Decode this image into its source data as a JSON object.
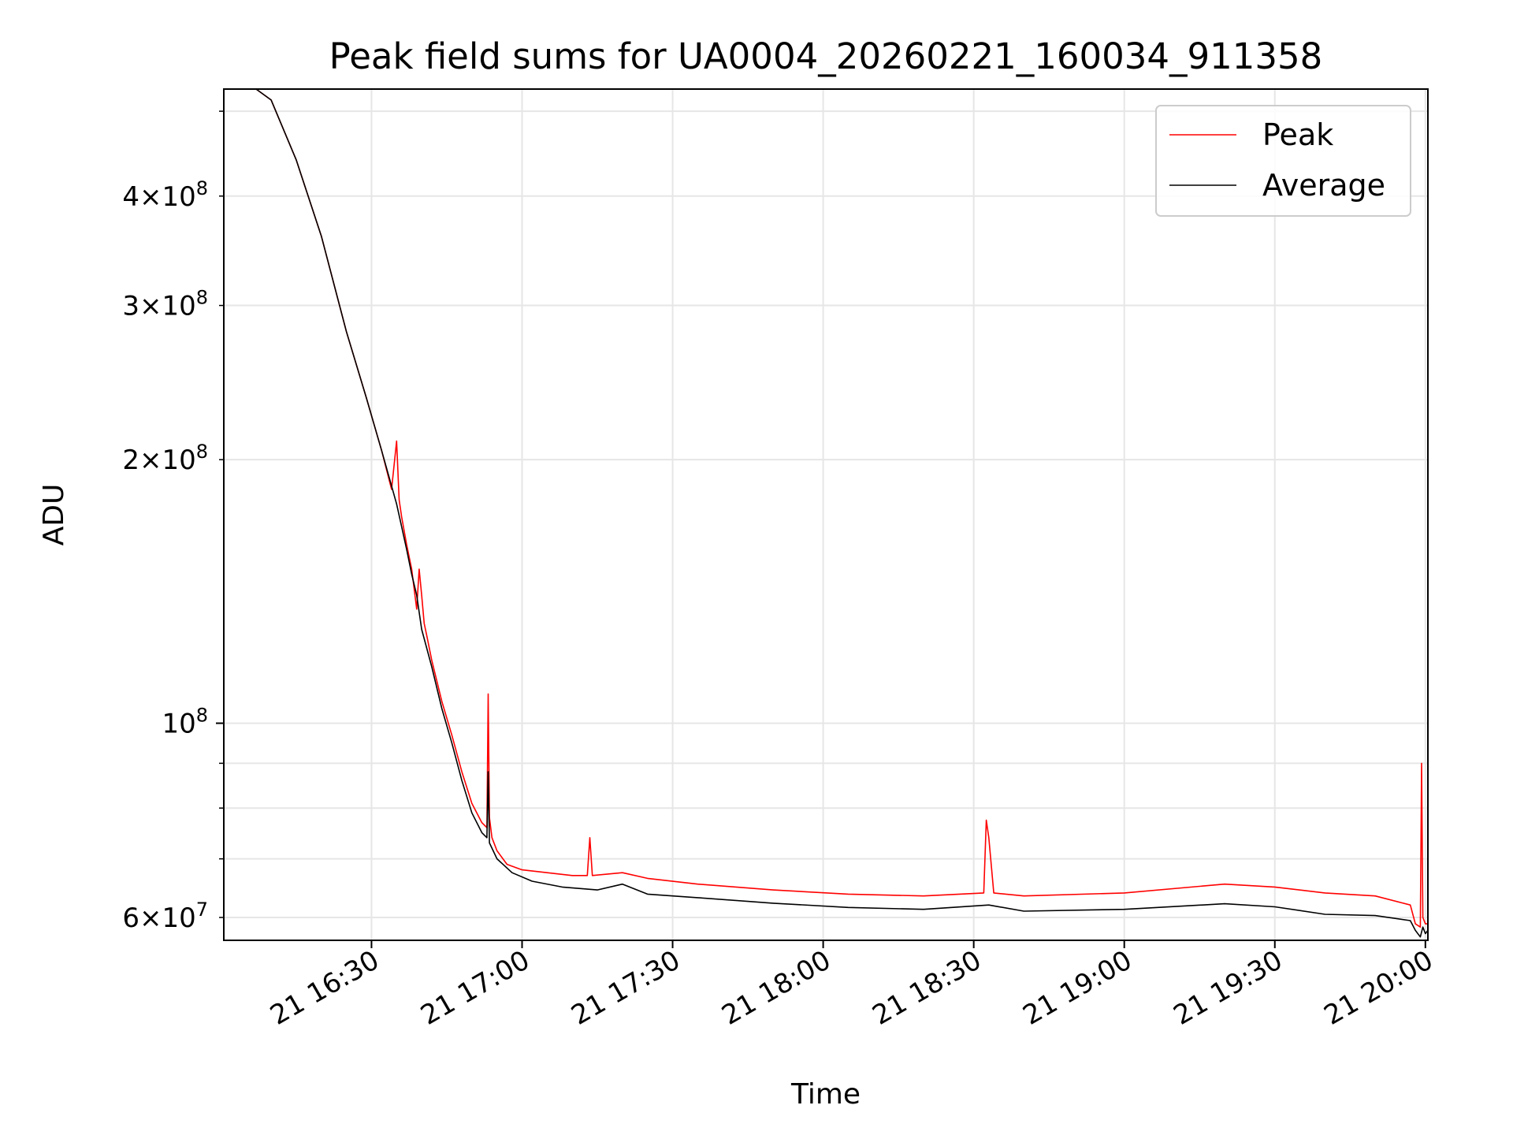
{
  "chart_data": {
    "type": "line",
    "title": "Peak field sums for UA0004_20260221_160034_911358",
    "xlabel": "Time",
    "ylabel": "ADU",
    "xscale": "time",
    "yscale": "log",
    "grid": true,
    "legend_position": "top-right",
    "xlim": [
      "2026-02-21 16:00:34",
      "2026-02-21 20:00:30"
    ],
    "ylim": [
      56500000,
      530000000
    ],
    "x_ticks": [
      "2026-02-21 16:30",
      "2026-02-21 17:00",
      "2026-02-21 17:30",
      "2026-02-21 18:00",
      "2026-02-21 18:30",
      "2026-02-21 19:00",
      "2026-02-21 19:30",
      "2026-02-21 20:00"
    ],
    "x_tick_labels": [
      "21 16:30",
      "21 17:00",
      "21 17:30",
      "21 18:00",
      "21 18:30",
      "21 19:00",
      "21 19:30",
      "21 20:00"
    ],
    "y_major_ticks": [
      {
        "value": 100000000,
        "mantissa": "",
        "base": "10",
        "exponent": "8"
      }
    ],
    "y_minor_ticks": [
      {
        "value": 60000000,
        "mantissa": "6",
        "base": "10",
        "exponent": "7"
      },
      {
        "value": 70000000,
        "mantissa": "",
        "base": "",
        "exponent": ""
      },
      {
        "value": 80000000,
        "mantissa": "",
        "base": "",
        "exponent": ""
      },
      {
        "value": 90000000,
        "mantissa": "",
        "base": "",
        "exponent": ""
      },
      {
        "value": 200000000,
        "mantissa": "2",
        "base": "10",
        "exponent": "8"
      },
      {
        "value": 300000000,
        "mantissa": "3",
        "base": "10",
        "exponent": "8"
      },
      {
        "value": 400000000,
        "mantissa": "4",
        "base": "10",
        "exponent": "8"
      },
      {
        "value": 500000000,
        "mantissa": "",
        "base": "",
        "exponent": ""
      }
    ],
    "series": [
      {
        "name": "Peak",
        "color": "#ff0000",
        "x": [
          "2026-02-21 16:00:34",
          "2026-02-21 16:07",
          "2026-02-21 16:10",
          "2026-02-21 16:15",
          "2026-02-21 16:20",
          "2026-02-21 16:25",
          "2026-02-21 16:29",
          "2026-02-21 16:32",
          "2026-02-21 16:34",
          "2026-02-21 16:35",
          "2026-02-21 16:35:30",
          "2026-02-21 16:36",
          "2026-02-21 16:37",
          "2026-02-21 16:38",
          "2026-02-21 16:39",
          "2026-02-21 16:39:30",
          "2026-02-21 16:40",
          "2026-02-21 16:40:30",
          "2026-02-21 16:41",
          "2026-02-21 16:42",
          "2026-02-21 16:44",
          "2026-02-21 16:46",
          "2026-02-21 16:48",
          "2026-02-21 16:50",
          "2026-02-21 16:52",
          "2026-02-21 16:53",
          "2026-02-21 16:53:15",
          "2026-02-21 16:53:30",
          "2026-02-21 16:54",
          "2026-02-21 16:55",
          "2026-02-21 16:57",
          "2026-02-21 17:00",
          "2026-02-21 17:05",
          "2026-02-21 17:10",
          "2026-02-21 17:13",
          "2026-02-21 17:13:30",
          "2026-02-21 17:14",
          "2026-02-21 17:20",
          "2026-02-21 17:25",
          "2026-02-21 17:35",
          "2026-02-21 17:50",
          "2026-02-21 18:05",
          "2026-02-21 18:20",
          "2026-02-21 18:32",
          "2026-02-21 18:32:30",
          "2026-02-21 18:33",
          "2026-02-21 18:34",
          "2026-02-21 18:40",
          "2026-02-21 19:00",
          "2026-02-21 19:20",
          "2026-02-21 19:30",
          "2026-02-21 19:40",
          "2026-02-21 19:50",
          "2026-02-21 19:57",
          "2026-02-21 19:58",
          "2026-02-21 19:59",
          "2026-02-21 19:59:15",
          "2026-02-21 19:59:30",
          "2026-02-21 20:00",
          "2026-02-21 20:00:30"
        ],
        "y": [
          530000000,
          530000000,
          515000000,
          440000000,
          360000000,
          280000000,
          235000000,
          205000000,
          185000000,
          210000000,
          180000000,
          172000000,
          160000000,
          150000000,
          135000000,
          150000000,
          140000000,
          130000000,
          126000000,
          118000000,
          106000000,
          97000000,
          88000000,
          81000000,
          77000000,
          76000000,
          108000000,
          78000000,
          74000000,
          71500000,
          69000000,
          68000000,
          67500000,
          67000000,
          67000000,
          74000000,
          67000000,
          67500000,
          66500000,
          65500000,
          64500000,
          63800000,
          63500000,
          64000000,
          77500000,
          74000000,
          64000000,
          63500000,
          64000000,
          65500000,
          65000000,
          64000000,
          63500000,
          62000000,
          59000000,
          58500000,
          90000000,
          60000000,
          59000000,
          59000000
        ]
      },
      {
        "name": "Average",
        "color": "#000000",
        "x": [
          "2026-02-21 16:00:34",
          "2026-02-21 16:07",
          "2026-02-21 16:10",
          "2026-02-21 16:15",
          "2026-02-21 16:20",
          "2026-02-21 16:25",
          "2026-02-21 16:29",
          "2026-02-21 16:32",
          "2026-02-21 16:35",
          "2026-02-21 16:37",
          "2026-02-21 16:38",
          "2026-02-21 16:39",
          "2026-02-21 16:40",
          "2026-02-21 16:42",
          "2026-02-21 16:44",
          "2026-02-21 16:46",
          "2026-02-21 16:48",
          "2026-02-21 16:50",
          "2026-02-21 16:52",
          "2026-02-21 16:53",
          "2026-02-21 16:53:15",
          "2026-02-21 16:53:30",
          "2026-02-21 16:55",
          "2026-02-21 16:58",
          "2026-02-21 17:02",
          "2026-02-21 17:08",
          "2026-02-21 17:15",
          "2026-02-21 17:20",
          "2026-02-21 17:25",
          "2026-02-21 17:35",
          "2026-02-21 17:50",
          "2026-02-21 18:05",
          "2026-02-21 18:20",
          "2026-02-21 18:33",
          "2026-02-21 18:40",
          "2026-02-21 19:00",
          "2026-02-21 19:20",
          "2026-02-21 19:30",
          "2026-02-21 19:40",
          "2026-02-21 19:50",
          "2026-02-21 19:57",
          "2026-02-21 19:58",
          "2026-02-21 19:59",
          "2026-02-21 19:59:30",
          "2026-02-21 20:00",
          "2026-02-21 20:00:30"
        ],
        "y": [
          530000000,
          530000000,
          515000000,
          440000000,
          360000000,
          280000000,
          235000000,
          205000000,
          178000000,
          158000000,
          148000000,
          140000000,
          128000000,
          116000000,
          104000000,
          95000000,
          86000000,
          79000000,
          75000000,
          74000000,
          88000000,
          73000000,
          70000000,
          67500000,
          66000000,
          65000000,
          64500000,
          65500000,
          63800000,
          63200000,
          62300000,
          61600000,
          61300000,
          62000000,
          61000000,
          61300000,
          62200000,
          61700000,
          60500000,
          60300000,
          59500000,
          58000000,
          57000000,
          58500000,
          57500000,
          58000000
        ]
      }
    ]
  }
}
